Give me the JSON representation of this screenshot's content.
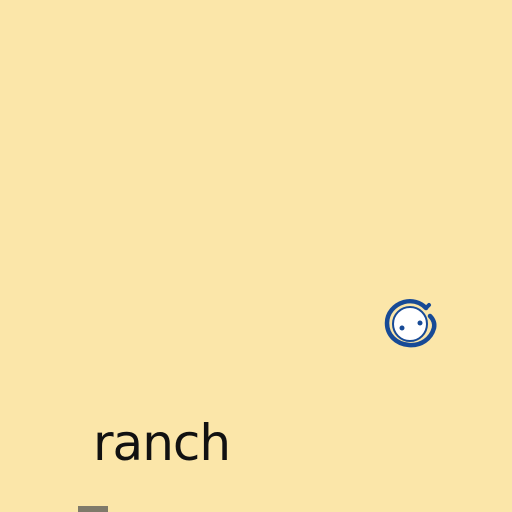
{
  "map": {
    "background_color": "#fbe6a9",
    "labels": [
      {
        "text": "ranch",
        "color": "#111111"
      }
    ],
    "markers": [
      {
        "icon": "location-marker-icon",
        "color": "#174a96"
      }
    ]
  }
}
